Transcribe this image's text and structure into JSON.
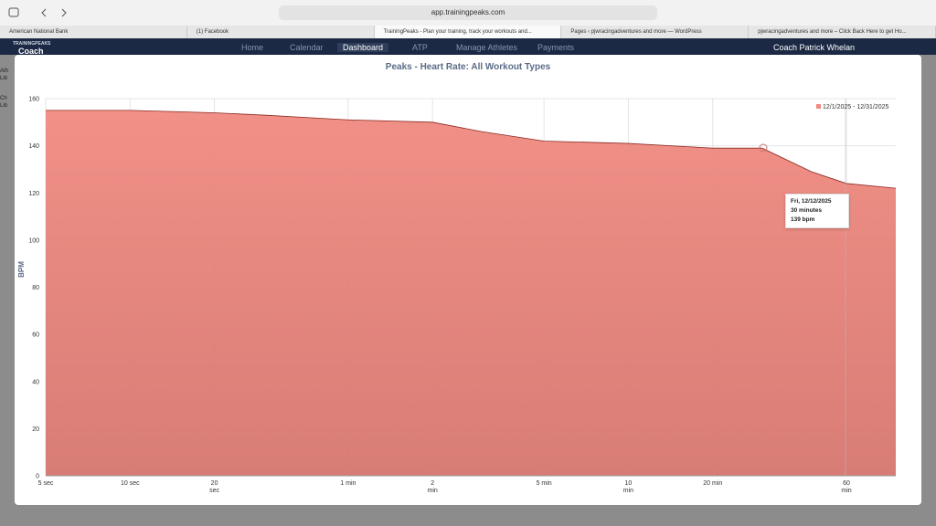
{
  "browser": {
    "url": "app.trainingpeaks.com",
    "tabs": [
      "American National Bank",
      "(1) Facebook",
      "TrainingPeaks - Plan your training, track your workouts and...",
      "Pages ‹ pjwracingadventures and more — WordPress",
      "pjwracingadventures and more – Click Back Here to get Ho..."
    ]
  },
  "app": {
    "brand": "TRAININGPEAKS",
    "role": "Coach",
    "nav": [
      "Home",
      "Calendar",
      "Dashboard",
      "ATP",
      "Manage Athletes",
      "Payments"
    ],
    "user": "Coach Patrick Whelan",
    "sidebar": [
      "Ath",
      "Lib",
      "Ch",
      "Lib"
    ]
  },
  "chart_data": {
    "type": "area",
    "title": "Peaks - Heart Rate: All Workout Types",
    "y_label": "BPM",
    "x": [
      5,
      10,
      20,
      30,
      60,
      120,
      180,
      300,
      600,
      1200,
      1800,
      2700,
      3600,
      5400
    ],
    "series": [
      {
        "name": "12/1/2025 - 12/31/2025",
        "color": "#f08a80",
        "values": [
          155,
          155,
          154,
          153,
          151,
          150,
          146,
          142,
          141,
          139,
          139,
          129,
          124,
          122
        ]
      }
    ],
    "xlog": true,
    "xlim": [
      5,
      5400
    ],
    "xticks": [
      {
        "value": 5,
        "label": "5 sec"
      },
      {
        "value": 10,
        "label": "10 sec"
      },
      {
        "value": 20,
        "label": "20\nsec"
      },
      {
        "value": 60,
        "label": "1 min"
      },
      {
        "value": 120,
        "label": "2\nmin"
      },
      {
        "value": 300,
        "label": "5 min"
      },
      {
        "value": 600,
        "label": "10\nmin"
      },
      {
        "value": 1200,
        "label": "20 min"
      },
      {
        "value": 3600,
        "label": "60\nmin"
      }
    ],
    "ylim": [
      0,
      160
    ],
    "yticks": [
      0,
      20,
      40,
      60,
      80,
      100,
      120,
      140,
      160
    ],
    "grid": true,
    "legend": "top-right",
    "tooltip": [
      "Fri, 12/12/2025",
      "30 minutes",
      "139 bpm"
    ]
  }
}
